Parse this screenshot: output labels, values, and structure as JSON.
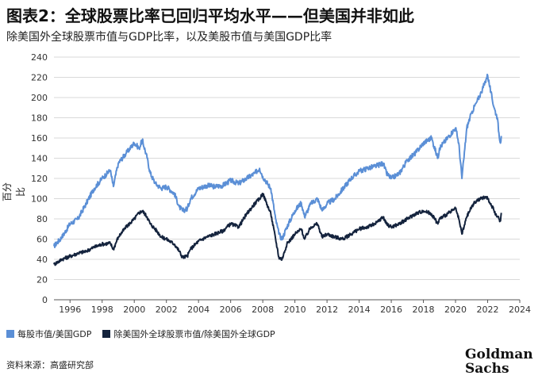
{
  "title": "图表2：全球股票比率已回归平均水平——但美国并非如此",
  "subtitle": "除美国外全球股票市值与GDP比率，以及美股市值与美国GDP比率",
  "source": "资料来源：高盛研究部",
  "logo": {
    "line1": "Goldman",
    "line2": "Sachs"
  },
  "colors": {
    "us": "#5b8fd6",
    "ex_us": "#14233d"
  },
  "chart_data": {
    "type": "line",
    "xlim": [
      1995,
      2024
    ],
    "ylim": [
      0,
      240
    ],
    "xticks": [
      1996,
      1998,
      2000,
      2002,
      2004,
      2006,
      2008,
      2010,
      2012,
      2014,
      2016,
      2018,
      2020,
      2022,
      2024
    ],
    "yticks": [
      0,
      20,
      40,
      60,
      80,
      100,
      120,
      140,
      160,
      180,
      200,
      220,
      240
    ],
    "ylabel": "百分比",
    "grid": "horizontal",
    "legend_position": "bottom",
    "series": [
      {
        "name": "每股市值/美国GDP",
        "color": "#5b8fd6",
        "x": [
          1995.0,
          1995.5,
          1996.0,
          1996.5,
          1997.0,
          1997.5,
          1998.0,
          1998.5,
          1998.7,
          1999.0,
          1999.5,
          2000.0,
          2000.3,
          2000.5,
          2000.8,
          2001.0,
          2001.3,
          2001.7,
          2002.0,
          2002.5,
          2002.8,
          2003.0,
          2003.3,
          2003.5,
          2004.0,
          2004.5,
          2005.0,
          2005.5,
          2006.0,
          2006.5,
          2007.0,
          2007.5,
          2007.8,
          2008.0,
          2008.5,
          2008.8,
          2009.0,
          2009.2,
          2009.5,
          2010.0,
          2010.4,
          2010.6,
          2011.0,
          2011.4,
          2011.7,
          2012.0,
          2012.5,
          2013.0,
          2013.5,
          2014.0,
          2014.5,
          2015.0,
          2015.5,
          2015.7,
          2016.0,
          2016.5,
          2017.0,
          2017.5,
          2018.0,
          2018.5,
          2018.9,
          2019.0,
          2019.5,
          2020.0,
          2020.2,
          2020.4,
          2020.7,
          2021.0,
          2021.3,
          2021.6,
          2021.9,
          2022.0,
          2022.2,
          2022.4,
          2022.6,
          2022.7,
          2022.8,
          2022.85
        ],
        "y": [
          53,
          62,
          75,
          80,
          95,
          110,
          120,
          128,
          112,
          135,
          145,
          155,
          150,
          158,
          140,
          125,
          115,
          110,
          112,
          105,
          92,
          88,
          90,
          100,
          110,
          113,
          112,
          113,
          118,
          115,
          120,
          125,
          130,
          122,
          110,
          80,
          65,
          60,
          72,
          88,
          96,
          82,
          95,
          100,
          88,
          95,
          100,
          110,
          120,
          127,
          130,
          132,
          135,
          125,
          120,
          125,
          138,
          145,
          155,
          160,
          140,
          150,
          160,
          170,
          155,
          120,
          170,
          185,
          195,
          205,
          218,
          222,
          205,
          190,
          180,
          165,
          155,
          162
        ]
      },
      {
        "name": "除美国外全球股票市值/除美国外全球GDP",
        "color": "#14233d",
        "x": [
          1995.0,
          1995.5,
          1996.0,
          1996.5,
          1997.0,
          1997.5,
          1998.0,
          1998.5,
          1998.7,
          1999.0,
          1999.5,
          2000.0,
          2000.3,
          2000.5,
          2000.8,
          2001.0,
          2001.3,
          2001.7,
          2002.0,
          2002.5,
          2002.8,
          2003.0,
          2003.3,
          2003.5,
          2004.0,
          2004.5,
          2005.0,
          2005.5,
          2006.0,
          2006.5,
          2007.0,
          2007.5,
          2007.8,
          2008.0,
          2008.5,
          2008.8,
          2009.0,
          2009.2,
          2009.5,
          2010.0,
          2010.4,
          2010.6,
          2011.0,
          2011.4,
          2011.7,
          2012.0,
          2012.5,
          2013.0,
          2013.5,
          2014.0,
          2014.5,
          2015.0,
          2015.5,
          2015.7,
          2016.0,
          2016.5,
          2017.0,
          2017.5,
          2018.0,
          2018.5,
          2018.9,
          2019.0,
          2019.5,
          2020.0,
          2020.2,
          2020.4,
          2020.7,
          2021.0,
          2021.3,
          2021.6,
          2021.9,
          2022.0,
          2022.2,
          2022.4,
          2022.6,
          2022.7,
          2022.8,
          2022.85
        ],
        "y": [
          35,
          40,
          43,
          46,
          48,
          52,
          55,
          56,
          50,
          62,
          72,
          80,
          86,
          88,
          82,
          75,
          70,
          62,
          60,
          55,
          48,
          42,
          43,
          50,
          58,
          62,
          65,
          68,
          75,
          72,
          85,
          95,
          100,
          105,
          85,
          60,
          42,
          40,
          55,
          65,
          70,
          60,
          72,
          75,
          62,
          65,
          62,
          60,
          65,
          70,
          72,
          75,
          82,
          75,
          72,
          75,
          80,
          85,
          88,
          85,
          75,
          80,
          85,
          90,
          80,
          65,
          82,
          92,
          98,
          100,
          102,
          100,
          95,
          88,
          82,
          80,
          78,
          86
        ]
      }
    ]
  }
}
